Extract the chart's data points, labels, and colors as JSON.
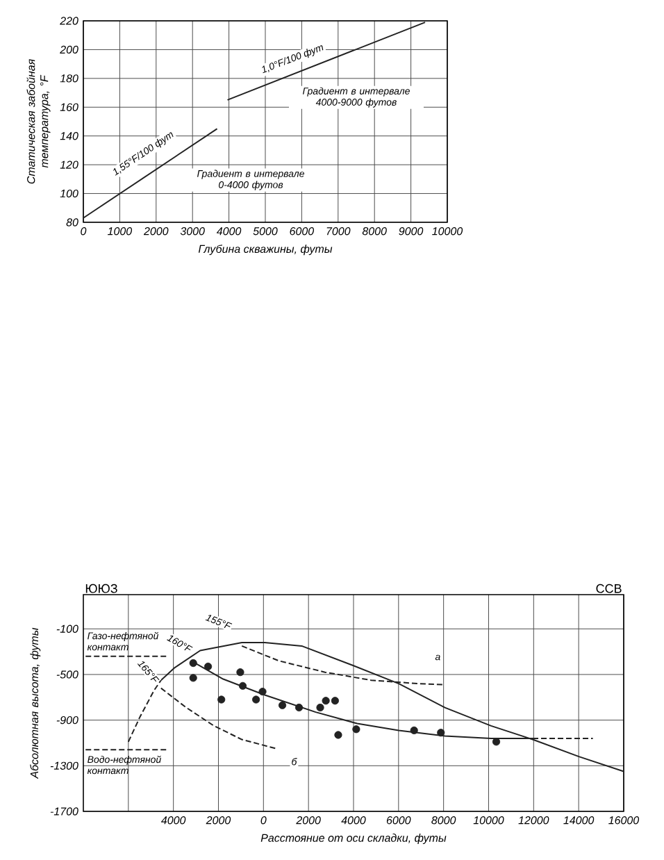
{
  "chart_data": [
    {
      "type": "line",
      "xlabel": "Глубина скважины, футы",
      "ylabel": "Статическая забойная температура, °F",
      "xlim": [
        0,
        10000
      ],
      "ylim": [
        80,
        220
      ],
      "xticks": [
        0,
        1000,
        2000,
        3000,
        4000,
        5000,
        6000,
        7000,
        8000,
        9000,
        10000
      ],
      "yticks": [
        80,
        100,
        120,
        140,
        160,
        180,
        200,
        220
      ],
      "grid": true,
      "marker": "none",
      "line_style": "solid",
      "series": [
        {
          "color": "#222222",
          "x": [
            0,
            3675
          ],
          "values": [
            83,
            145
          ]
        },
        {
          "color": "#222222",
          "x": [
            3960,
            9390
          ],
          "values": [
            165,
            219
          ]
        }
      ],
      "annotations": [
        "1,55°F/100 фут",
        "Градиент в интервале 0-4000 футов",
        "1,0°F/100 фут",
        "Градиент в интервале 4000-9000 футов"
      ]
    },
    {
      "type": "line",
      "xlabel": "Расстояние от оси складки, футы",
      "ylabel": "Абсолютная высота, футы",
      "xlim": [
        -8000,
        16000
      ],
      "ylim": [
        -1700,
        200
      ],
      "xticks": [
        {
          "value": -6000,
          "label": null
        },
        {
          "value": -4000,
          "label": "4000"
        },
        {
          "value": -2000,
          "label": "2000"
        },
        0,
        2000,
        4000,
        6000,
        8000,
        10000,
        12000,
        14000,
        16000
      ],
      "yticks": [
        -1700,
        -1300,
        -900,
        -500,
        -100
      ],
      "grid": true,
      "marker": "none",
      "line_style": "solid",
      "series": [
        {
          "color": "#222222",
          "line_style": "dashed",
          "x": [
            -6000,
            -5480,
            -4860,
            -4550
          ],
          "values": [
            -1090,
            -870,
            -640,
            -550
          ]
        },
        {
          "color": "#222222",
          "x": [
            -4550,
            -3940,
            -2810,
            -960,
            60,
            1700,
            3960,
            6010,
            8060,
            10110,
            11960,
            14010,
            16000
          ],
          "values": [
            -550,
            -440,
            -290,
            -220,
            -220,
            -250,
            -420,
            -580,
            -790,
            -950,
            -1070,
            -1220,
            -1350
          ]
        },
        {
          "color": "#222222",
          "line_style": "dashed",
          "x": [
            -960,
            680,
            2730,
            4780,
            6830,
            8060
          ],
          "values": [
            -250,
            -380,
            -480,
            -550,
            -580,
            -590
          ]
        },
        {
          "color": "#222222",
          "line_style": "dashed",
          "x": [
            -4550,
            -3430,
            -2200,
            -960,
            570
          ],
          "values": [
            -620,
            -790,
            -950,
            -1070,
            -1150
          ]
        },
        {
          "color": "#222222",
          "x": [
            -3220,
            -1790,
            60,
            2320,
            4160,
            6010,
            8060,
            10110,
            11960
          ],
          "values": [
            -380,
            -540,
            -680,
            -830,
            -930,
            -990,
            -1040,
            -1060,
            -1060
          ]
        },
        {
          "color": "#222222",
          "line_style": "dashed",
          "x": [
            11960,
            14630
          ],
          "values": [
            -1060,
            -1060
          ]
        },
        {
          "name": "Газо-нефтяной контакт",
          "color": "#222222",
          "line_style": "dashed",
          "x": [
            -7900,
            -4200
          ],
          "values": [
            -340,
            -340
          ]
        },
        {
          "name": "Водо-нефтяной контакт",
          "color": "#222222",
          "line_style": "dashed",
          "x": [
            -7900,
            -4300
          ],
          "values": [
            -1160,
            -1160
          ]
        },
        {
          "type": "scatter",
          "marker": "circle",
          "color": "#222222",
          "x": [
            -3120,
            -2460,
            -3120,
            -1030,
            -920,
            -1870,
            -330,
            -40,
            840,
            1580,
            2520,
            2770,
            3180,
            3320,
            4120,
            6690,
            7880,
            10340
          ],
          "values": [
            -400,
            -430,
            -530,
            -480,
            -600,
            -720,
            -720,
            -650,
            -770,
            -790,
            -790,
            -730,
            -730,
            -1030,
            -980,
            -990,
            -1010,
            -1090
          ]
        }
      ],
      "annotations": [
        "ЮЮЗ",
        "ССВ",
        "155°F",
        "160°F",
        "165°F",
        "а",
        "б"
      ]
    }
  ]
}
